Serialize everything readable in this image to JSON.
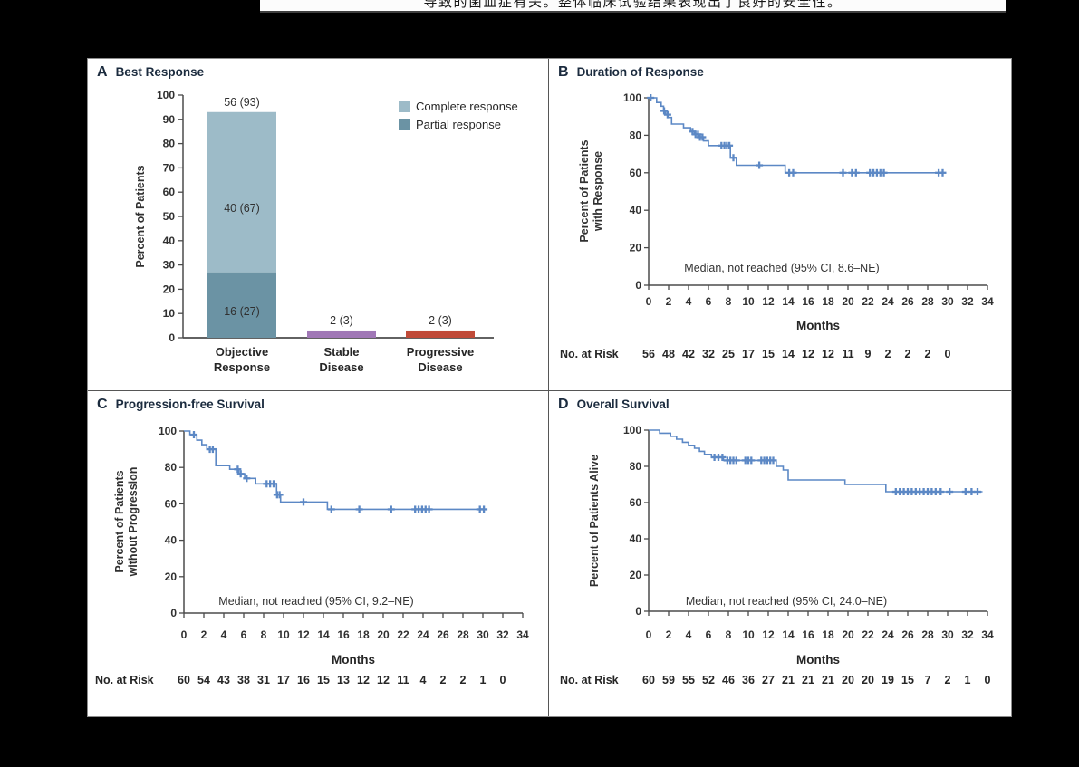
{
  "top_banner": {
    "text": "导致的菌血症有关。整体临床试验结果表现出了良好的安全性。"
  },
  "figure": {
    "months_label": "Months",
    "risk_label": "No. at Risk"
  },
  "colors": {
    "km_line": "#5c88c5",
    "bar_complete": "#9dbbc8",
    "bar_partial": "#6b93a4",
    "bar_stable": "#a077b6",
    "bar_progressive": "#c04a38",
    "axis": "#4b4b4b",
    "text": "#303030",
    "panel_title": "#1b2b3e"
  },
  "chart_data": [
    {
      "type": "bar",
      "panel_letter": "A",
      "title": "Best Response",
      "ylabel": "Percent of Patients",
      "ylim": [
        0,
        100
      ],
      "ytick_step": 10,
      "categories": [
        [
          "Objective",
          "Response"
        ],
        [
          "Stable",
          "Disease"
        ],
        [
          "Progressive",
          "Disease"
        ]
      ],
      "bars": [
        {
          "total": 93,
          "total_label": "56 (93)",
          "segments": [
            {
              "name": "Partial response",
              "from": 0,
              "to": 27,
              "label": "16 (27)",
              "color": "#6b93a4"
            },
            {
              "name": "Complete response",
              "from": 27,
              "to": 93,
              "label": "40 (67)",
              "color": "#9dbbc8"
            }
          ]
        },
        {
          "total": 3,
          "total_label": "2 (3)",
          "segments": [
            {
              "name": "Stable disease",
              "from": 0,
              "to": 3,
              "label": "",
              "color": "#a077b6"
            }
          ]
        },
        {
          "total": 3,
          "total_label": "2 (3)",
          "segments": [
            {
              "name": "Progressive disease",
              "from": 0,
              "to": 3,
              "label": "",
              "color": "#c04a38"
            }
          ]
        }
      ],
      "legend": [
        {
          "label": "Complete response",
          "color": "#9dbbc8"
        },
        {
          "label": "Partial response",
          "color": "#6b93a4"
        }
      ]
    },
    {
      "type": "km",
      "panel_letter": "B",
      "title": "Duration of Response",
      "ylabel_lines": [
        "Percent of Patients",
        "with Response"
      ],
      "xlabel": "Months",
      "xlim": [
        0,
        34
      ],
      "xtick_step": 2,
      "ylim": [
        0,
        100
      ],
      "ytick_step": 20,
      "median_note": "Median, not reached (95% CI, 8.6–NE)",
      "line_color": "#5c88c5",
      "steps": [
        [
          0,
          100
        ],
        [
          0.8,
          100
        ],
        [
          0.8,
          97.5
        ],
        [
          1.25,
          97.5
        ],
        [
          1.25,
          95.5
        ],
        [
          1.5,
          95.5
        ],
        [
          1.5,
          93
        ],
        [
          1.7,
          93
        ],
        [
          1.7,
          91
        ],
        [
          1.9,
          91
        ],
        [
          1.9,
          89.5
        ],
        [
          2.3,
          89.5
        ],
        [
          2.3,
          86
        ],
        [
          3.5,
          86
        ],
        [
          3.5,
          84
        ],
        [
          4.2,
          84
        ],
        [
          4.2,
          82
        ],
        [
          4.6,
          82
        ],
        [
          4.6,
          80.5
        ],
        [
          5.0,
          80.5
        ],
        [
          5.0,
          79
        ],
        [
          5.5,
          79
        ],
        [
          5.5,
          77
        ],
        [
          6.0,
          77
        ],
        [
          6.0,
          74.5
        ],
        [
          8.2,
          74.5
        ],
        [
          8.2,
          68
        ],
        [
          8.8,
          68
        ],
        [
          8.8,
          64
        ],
        [
          13.7,
          64
        ],
        [
          13.7,
          60
        ],
        [
          29.5,
          60
        ]
      ],
      "censors": [
        [
          0.2,
          100
        ],
        [
          1.55,
          93
        ],
        [
          1.9,
          91
        ],
        [
          4.4,
          82
        ],
        [
          4.7,
          80.5
        ],
        [
          4.95,
          80.5
        ],
        [
          5.15,
          79
        ],
        [
          5.4,
          79
        ],
        [
          7.3,
          74.5
        ],
        [
          7.6,
          74.5
        ],
        [
          7.85,
          74.5
        ],
        [
          8.1,
          74.5
        ],
        [
          8.5,
          68
        ],
        [
          11.1,
          64
        ],
        [
          14.1,
          60
        ],
        [
          14.5,
          60
        ],
        [
          19.5,
          60
        ],
        [
          20.4,
          60
        ],
        [
          20.8,
          60
        ],
        [
          22.2,
          60
        ],
        [
          22.55,
          60
        ],
        [
          22.9,
          60
        ],
        [
          23.25,
          60
        ],
        [
          23.6,
          60
        ],
        [
          29.1,
          60
        ],
        [
          29.5,
          60
        ]
      ],
      "risk": {
        "months": [
          0,
          2,
          4,
          6,
          8,
          10,
          12,
          14,
          16,
          18,
          20,
          22,
          24,
          26,
          28,
          30
        ],
        "values": [
          56,
          48,
          42,
          32,
          25,
          17,
          15,
          14,
          12,
          12,
          11,
          9,
          2,
          2,
          2,
          0
        ]
      }
    },
    {
      "type": "km",
      "panel_letter": "C",
      "title": "Progression-free Survival",
      "ylabel_lines": [
        "Percent of Patients",
        "without Progression"
      ],
      "xlabel": "Months",
      "xlim": [
        0,
        34
      ],
      "xtick_step": 2,
      "ylim": [
        0,
        100
      ],
      "ytick_step": 20,
      "median_note": "Median, not reached (95% CI, 9.2–NE)",
      "line_color": "#5c88c5",
      "steps": [
        [
          0,
          100
        ],
        [
          0.6,
          100
        ],
        [
          0.6,
          98
        ],
        [
          1.3,
          98
        ],
        [
          1.3,
          95
        ],
        [
          1.8,
          95
        ],
        [
          1.8,
          92.5
        ],
        [
          2.3,
          92.5
        ],
        [
          2.3,
          90
        ],
        [
          3.2,
          90
        ],
        [
          3.2,
          81
        ],
        [
          4.6,
          81
        ],
        [
          4.6,
          79
        ],
        [
          5.5,
          79
        ],
        [
          5.5,
          76.5
        ],
        [
          6.1,
          76.5
        ],
        [
          6.1,
          74
        ],
        [
          7.2,
          74
        ],
        [
          7.2,
          71
        ],
        [
          9.3,
          71
        ],
        [
          9.3,
          65
        ],
        [
          9.7,
          65
        ],
        [
          9.7,
          61
        ],
        [
          14.4,
          61
        ],
        [
          14.4,
          57
        ],
        [
          30.4,
          57
        ]
      ],
      "censors": [
        [
          1.0,
          98
        ],
        [
          2.6,
          90
        ],
        [
          2.9,
          90
        ],
        [
          5.4,
          79
        ],
        [
          5.7,
          76.5
        ],
        [
          6.3,
          74
        ],
        [
          8.3,
          71
        ],
        [
          8.65,
          71
        ],
        [
          9.0,
          71
        ],
        [
          9.35,
          65
        ],
        [
          9.6,
          65
        ],
        [
          12.0,
          61
        ],
        [
          14.8,
          57
        ],
        [
          17.6,
          57
        ],
        [
          20.8,
          57
        ],
        [
          23.2,
          57
        ],
        [
          23.55,
          57
        ],
        [
          23.9,
          57
        ],
        [
          24.25,
          57
        ],
        [
          24.6,
          57
        ],
        [
          29.7,
          57
        ],
        [
          30.1,
          57
        ]
      ],
      "risk": {
        "months": [
          0,
          2,
          4,
          6,
          8,
          10,
          12,
          14,
          16,
          18,
          20,
          22,
          24,
          26,
          28,
          30,
          32
        ],
        "values": [
          60,
          54,
          43,
          38,
          31,
          17,
          16,
          15,
          13,
          12,
          12,
          11,
          4,
          2,
          2,
          1,
          0
        ]
      }
    },
    {
      "type": "km",
      "panel_letter": "D",
      "title": "Overall Survival",
      "ylabel_lines": [
        "Percent of Patients Alive"
      ],
      "xlabel": "Months",
      "xlim": [
        0,
        34
      ],
      "xtick_step": 2,
      "ylim": [
        0,
        100
      ],
      "ytick_step": 20,
      "median_note": "Median, not reached (95% CI, 24.0–NE)",
      "line_color": "#5c88c5",
      "steps": [
        [
          0,
          100
        ],
        [
          1.1,
          100
        ],
        [
          1.1,
          98.3
        ],
        [
          2.2,
          98.3
        ],
        [
          2.2,
          96.6
        ],
        [
          2.8,
          96.6
        ],
        [
          2.8,
          95
        ],
        [
          3.4,
          95
        ],
        [
          3.4,
          93.3
        ],
        [
          4.0,
          93.3
        ],
        [
          4.0,
          91.6
        ],
        [
          4.6,
          91.6
        ],
        [
          4.6,
          90
        ],
        [
          5.1,
          90
        ],
        [
          5.1,
          88.3
        ],
        [
          5.6,
          88.3
        ],
        [
          5.6,
          86.6
        ],
        [
          6.3,
          86.6
        ],
        [
          6.3,
          85
        ],
        [
          7.5,
          85
        ],
        [
          7.5,
          83.3
        ],
        [
          12.8,
          83.3
        ],
        [
          12.8,
          80
        ],
        [
          13.5,
          80
        ],
        [
          13.5,
          78
        ],
        [
          14.0,
          78
        ],
        [
          14.0,
          72.5
        ],
        [
          19.7,
          72.5
        ],
        [
          19.7,
          70
        ],
        [
          23.8,
          70
        ],
        [
          23.8,
          66
        ],
        [
          33.5,
          66
        ]
      ],
      "censors": [
        [
          6.6,
          85
        ],
        [
          7.0,
          85
        ],
        [
          7.4,
          85
        ],
        [
          7.9,
          83.3
        ],
        [
          8.2,
          83.3
        ],
        [
          8.5,
          83.3
        ],
        [
          8.8,
          83.3
        ],
        [
          9.7,
          83.3
        ],
        [
          10.0,
          83.3
        ],
        [
          10.3,
          83.3
        ],
        [
          11.3,
          83.3
        ],
        [
          11.6,
          83.3
        ],
        [
          11.9,
          83.3
        ],
        [
          12.2,
          83.3
        ],
        [
          12.5,
          83.3
        ],
        [
          24.8,
          66
        ],
        [
          25.2,
          66
        ],
        [
          25.6,
          66
        ],
        [
          26.0,
          66
        ],
        [
          26.4,
          66
        ],
        [
          26.8,
          66
        ],
        [
          27.2,
          66
        ],
        [
          27.6,
          66
        ],
        [
          28.0,
          66
        ],
        [
          28.4,
          66
        ],
        [
          28.8,
          66
        ],
        [
          29.3,
          66
        ],
        [
          30.2,
          66
        ],
        [
          31.8,
          66
        ],
        [
          32.4,
          66
        ],
        [
          33.0,
          66
        ]
      ],
      "risk": {
        "months": [
          0,
          2,
          4,
          6,
          8,
          10,
          12,
          14,
          16,
          18,
          20,
          22,
          24,
          26,
          28,
          30,
          32,
          34
        ],
        "values": [
          60,
          59,
          55,
          52,
          46,
          36,
          27,
          21,
          21,
          21,
          20,
          20,
          19,
          15,
          7,
          2,
          1,
          0
        ]
      }
    }
  ]
}
